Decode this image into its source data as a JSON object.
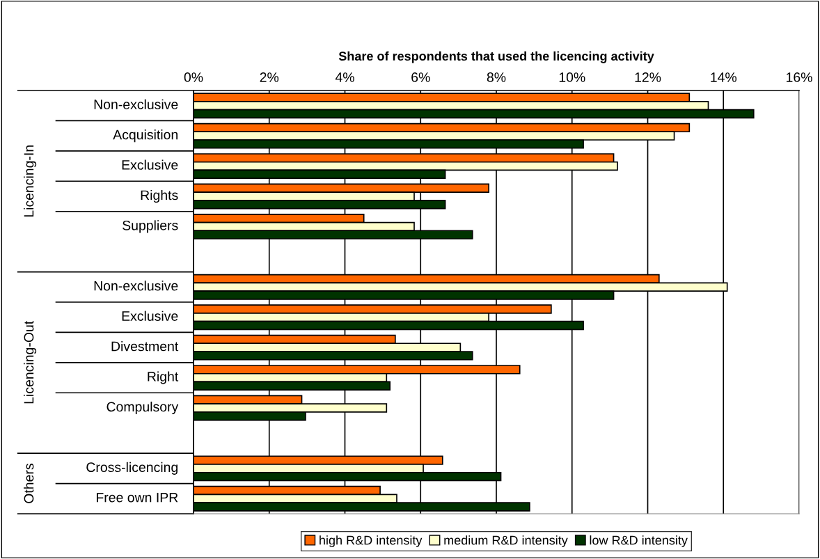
{
  "chart_data": {
    "type": "bar",
    "orientation": "horizontal",
    "xlabel": "Share of respondents that used the licencing activity",
    "categories": [
      "Non-exclusive",
      "Acquisition",
      "Exclusive",
      "Rights",
      "Suppliers",
      null,
      "Non-exclusive",
      "Exclusive",
      "Divestment",
      "Right",
      "Compulsory",
      null,
      "Cross-licencing",
      "Free own IPR"
    ],
    "annotations": [
      "Licencing-In",
      "Licencing-Out",
      "Others"
    ],
    "series": [
      {
        "name": "high R&D intensity",
        "color": "#ff6600",
        "values": [
          13.1,
          13.1,
          11.1,
          7.8,
          4.5,
          null,
          12.3,
          9.45,
          5.33,
          8.62,
          2.86,
          null,
          6.58,
          4.93
        ]
      },
      {
        "name": "medium R&D intensity",
        "color": "#ffffcc",
        "values": [
          13.6,
          12.7,
          11.2,
          5.83,
          5.83,
          null,
          14.1,
          7.8,
          7.05,
          5.1,
          5.1,
          null,
          6.07,
          5.37
        ]
      },
      {
        "name": "low R&D intensity",
        "color": "#003300",
        "values": [
          14.8,
          10.3,
          6.65,
          6.65,
          7.37,
          null,
          11.1,
          10.3,
          7.37,
          5.19,
          2.96,
          null,
          8.12,
          8.88
        ]
      }
    ],
    "xlim": [
      0,
      16
    ],
    "xticks": [
      {
        "value": 0,
        "label": "0%"
      },
      {
        "value": 2,
        "label": "2%"
      },
      {
        "value": 4,
        "label": "4%"
      },
      {
        "value": 6,
        "label": "6%"
      },
      {
        "value": 8,
        "label": "8%"
      },
      {
        "value": 10,
        "label": "10%"
      },
      {
        "value": 12,
        "label": "12%"
      },
      {
        "value": 14,
        "label": "14%"
      },
      {
        "value": 16,
        "label": "16%"
      }
    ],
    "grid": "x",
    "legend": "bottom"
  }
}
